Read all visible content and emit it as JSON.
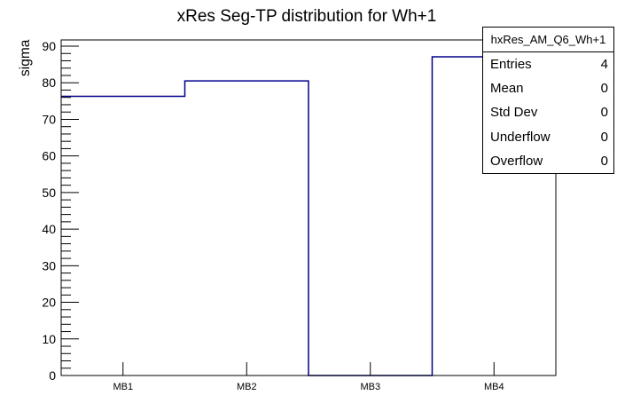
{
  "chart_data": {
    "type": "histogram-step",
    "title": "xRes Seg-TP distribution for Wh+1",
    "xlabel": "",
    "ylabel": "sigma",
    "categories": [
      "MB1",
      "MB2",
      "MB3",
      "MB4"
    ],
    "values": [
      76.3,
      80.5,
      0,
      87.1
    ],
    "ylim": [
      0,
      91.7
    ],
    "ytick_step": 10,
    "yminor_step": 2,
    "yticks": [
      0,
      10,
      20,
      30,
      40,
      50,
      60,
      70,
      80,
      90
    ],
    "grid": false,
    "legend": "none",
    "line_color": "#00008b",
    "frame_color": "#000000",
    "background_color": "#ffffff"
  },
  "stats": {
    "title": "hxRes_AM_Q6_Wh+1",
    "rows": [
      {
        "label": "Entries",
        "value": "4"
      },
      {
        "label": "Mean",
        "value": "0"
      },
      {
        "label": "Std Dev",
        "value": "0"
      },
      {
        "label": "Underflow",
        "value": "0"
      },
      {
        "label": "Overflow",
        "value": "0"
      }
    ]
  }
}
